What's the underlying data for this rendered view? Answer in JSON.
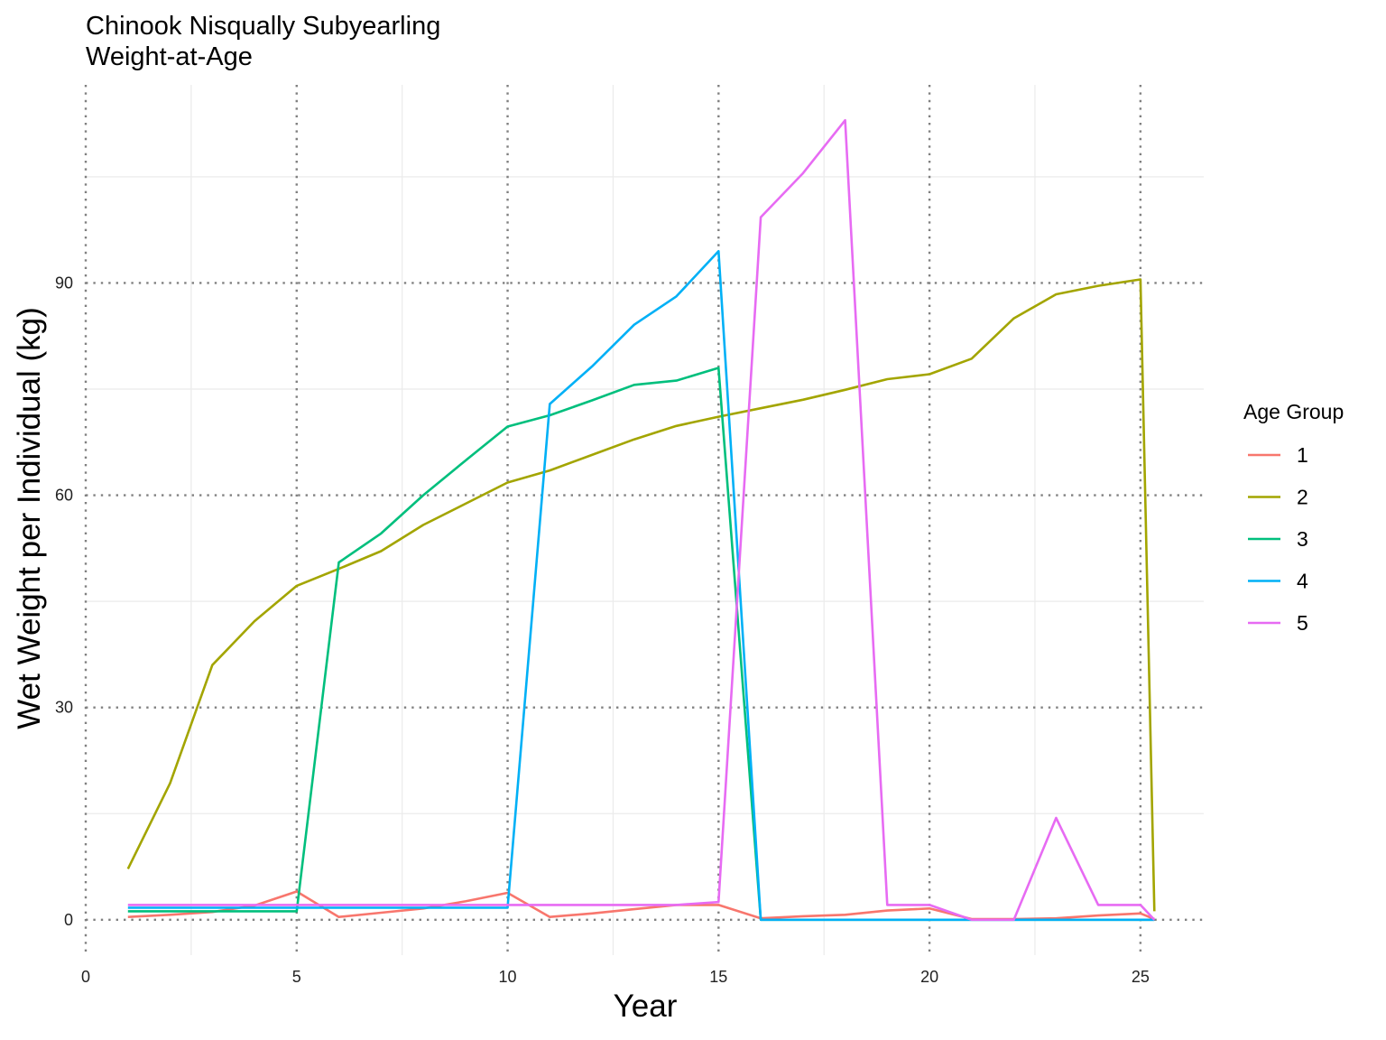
{
  "chart_data": {
    "type": "line",
    "title": "Chinook Nisqually Subyearling",
    "subtitle": "Weight-at-Age",
    "xlabel": "Year",
    "ylabel": "Wet Weight per Individual (kg)",
    "xlim": [
      0,
      26.5
    ],
    "ylim": [
      -5,
      118
    ],
    "x_ticks": [
      0,
      5,
      10,
      15,
      20,
      25
    ],
    "y_ticks": [
      0,
      30,
      60,
      90
    ],
    "x_minor_ticks": [
      2.5,
      7.5,
      12.5,
      17.5,
      22.5
    ],
    "y_minor_ticks": [
      15,
      45,
      75,
      105
    ],
    "grid": true,
    "major_grid_style": "dotted",
    "legend": {
      "title": "Age Group",
      "position": "right"
    },
    "series": [
      {
        "name": "1",
        "color": "#F8766D",
        "x": [
          1,
          2,
          3,
          4,
          5,
          6,
          7,
          8,
          9,
          10,
          11,
          12,
          13,
          14,
          15,
          16,
          17,
          18,
          19,
          20,
          21,
          22,
          23,
          24,
          25,
          25.33
        ],
        "y": [
          0.4,
          0.7,
          1.1,
          2.0,
          4.0,
          0.4,
          1.0,
          1.6,
          2.6,
          3.8,
          0.4,
          0.9,
          1.5,
          2.1,
          2.1,
          0.2,
          0.5,
          0.7,
          1.3,
          1.6,
          0.1,
          0.1,
          0.2,
          0.6,
          0.9,
          0.1
        ]
      },
      {
        "name": "2",
        "color": "#A3A500",
        "x": [
          1,
          2,
          3,
          4,
          5,
          6,
          7,
          8,
          9,
          10,
          11,
          12,
          13,
          14,
          15,
          16,
          17,
          18,
          19,
          20,
          21,
          22,
          23,
          24,
          25,
          25.33
        ],
        "y": [
          7.2,
          19.3,
          36.0,
          42.2,
          47.2,
          49.6,
          52.1,
          55.8,
          58.8,
          61.8,
          63.5,
          65.7,
          67.9,
          69.8,
          71.1,
          72.3,
          73.5,
          74.9,
          76.4,
          77.1,
          79.3,
          85.0,
          88.4,
          89.6,
          90.5,
          1.2
        ]
      },
      {
        "name": "3",
        "color": "#00BF7D",
        "x": [
          1,
          2,
          3,
          4,
          5,
          6,
          7,
          8,
          9,
          10,
          11,
          12,
          13,
          14,
          15,
          16,
          17,
          18,
          19,
          20,
          21,
          22,
          23,
          24,
          25,
          25.33
        ],
        "y": [
          1.2,
          1.2,
          1.2,
          1.2,
          1.2,
          50.5,
          54.6,
          60.0,
          64.9,
          69.7,
          71.3,
          73.4,
          75.6,
          76.2,
          78.0,
          0.0,
          0.0,
          0.0,
          0.0,
          0.0,
          0.0,
          0.0,
          0.0,
          0.0,
          0.0,
          0.0
        ]
      },
      {
        "name": "4",
        "color": "#00B0F6",
        "x": [
          1,
          2,
          3,
          4,
          5,
          6,
          7,
          8,
          9,
          10,
          11,
          12,
          13,
          14,
          15,
          16,
          17,
          18,
          19,
          20,
          21,
          22,
          23,
          24,
          25,
          25.33
        ],
        "y": [
          1.7,
          1.7,
          1.7,
          1.7,
          1.7,
          1.7,
          1.7,
          1.7,
          1.7,
          1.7,
          72.9,
          78.2,
          84.1,
          88.1,
          94.5,
          0.0,
          0.0,
          0.0,
          0.0,
          0.0,
          0.0,
          0.0,
          0.0,
          0.0,
          0.0,
          0.0
        ]
      },
      {
        "name": "5",
        "color": "#E76BF3",
        "x": [
          1,
          2,
          3,
          4,
          5,
          6,
          7,
          8,
          9,
          10,
          11,
          12,
          13,
          14,
          15,
          16,
          17,
          18,
          19,
          20,
          21,
          22,
          23,
          24,
          25,
          25.33
        ],
        "y": [
          2.1,
          2.1,
          2.1,
          2.1,
          2.1,
          2.1,
          2.1,
          2.1,
          2.1,
          2.1,
          2.1,
          2.1,
          2.1,
          2.1,
          2.5,
          99.3,
          105.5,
          113.0,
          2.1,
          2.1,
          0.0,
          0.0,
          14.4,
          2.1,
          2.1,
          0.0
        ]
      }
    ]
  }
}
